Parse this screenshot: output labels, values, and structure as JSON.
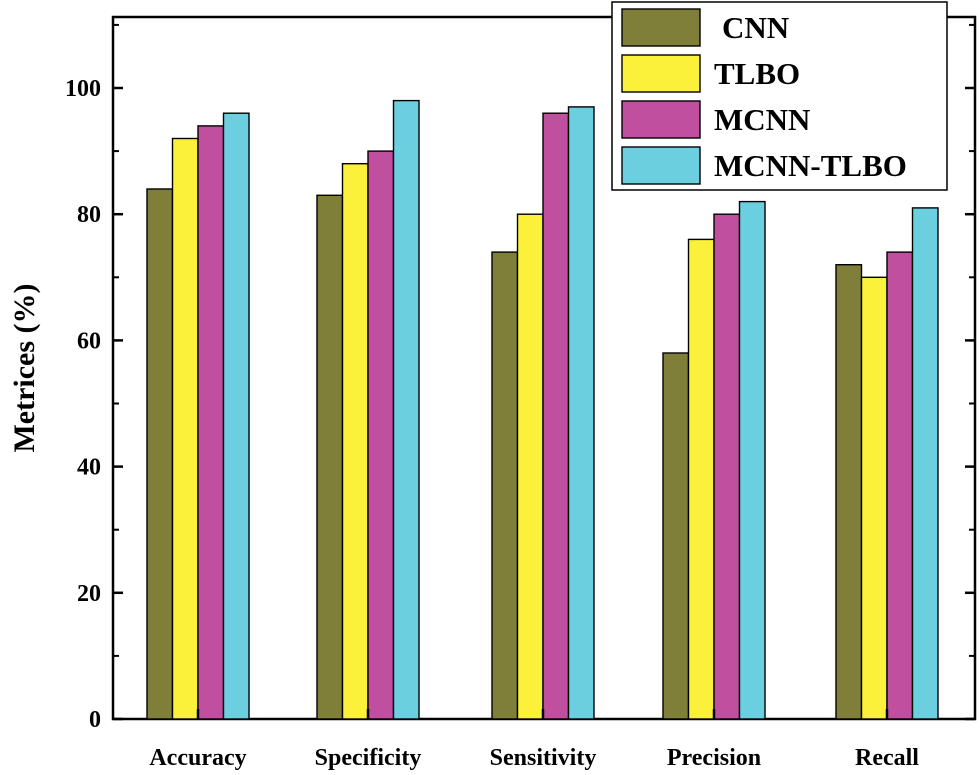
{
  "chart_data": {
    "type": "bar",
    "title": "",
    "xlabel": "",
    "ylabel": "Metrices (%)",
    "ylim": [
      0,
      110
    ],
    "yticks": [
      0,
      20,
      40,
      60,
      80,
      100
    ],
    "categories": [
      "Accuracy",
      "Specificity",
      "Sensitivity",
      "Precision",
      "Recall"
    ],
    "series": [
      {
        "name": "CNN",
        "color": "#7f7f3a",
        "values": [
          84,
          83,
          74,
          58,
          72
        ]
      },
      {
        "name": "TLBO",
        "color": "#fbf03a",
        "values": [
          92,
          88,
          80,
          76,
          70
        ]
      },
      {
        "name": "MCNN",
        "color": "#c0509f",
        "values": [
          94,
          90,
          96,
          80,
          74
        ]
      },
      {
        "name": "MCNN-TLBO",
        "color": "#6ccfe0",
        "values": [
          96,
          98,
          97,
          82,
          81
        ]
      }
    ],
    "grid": false,
    "legend_position": "top-right"
  }
}
